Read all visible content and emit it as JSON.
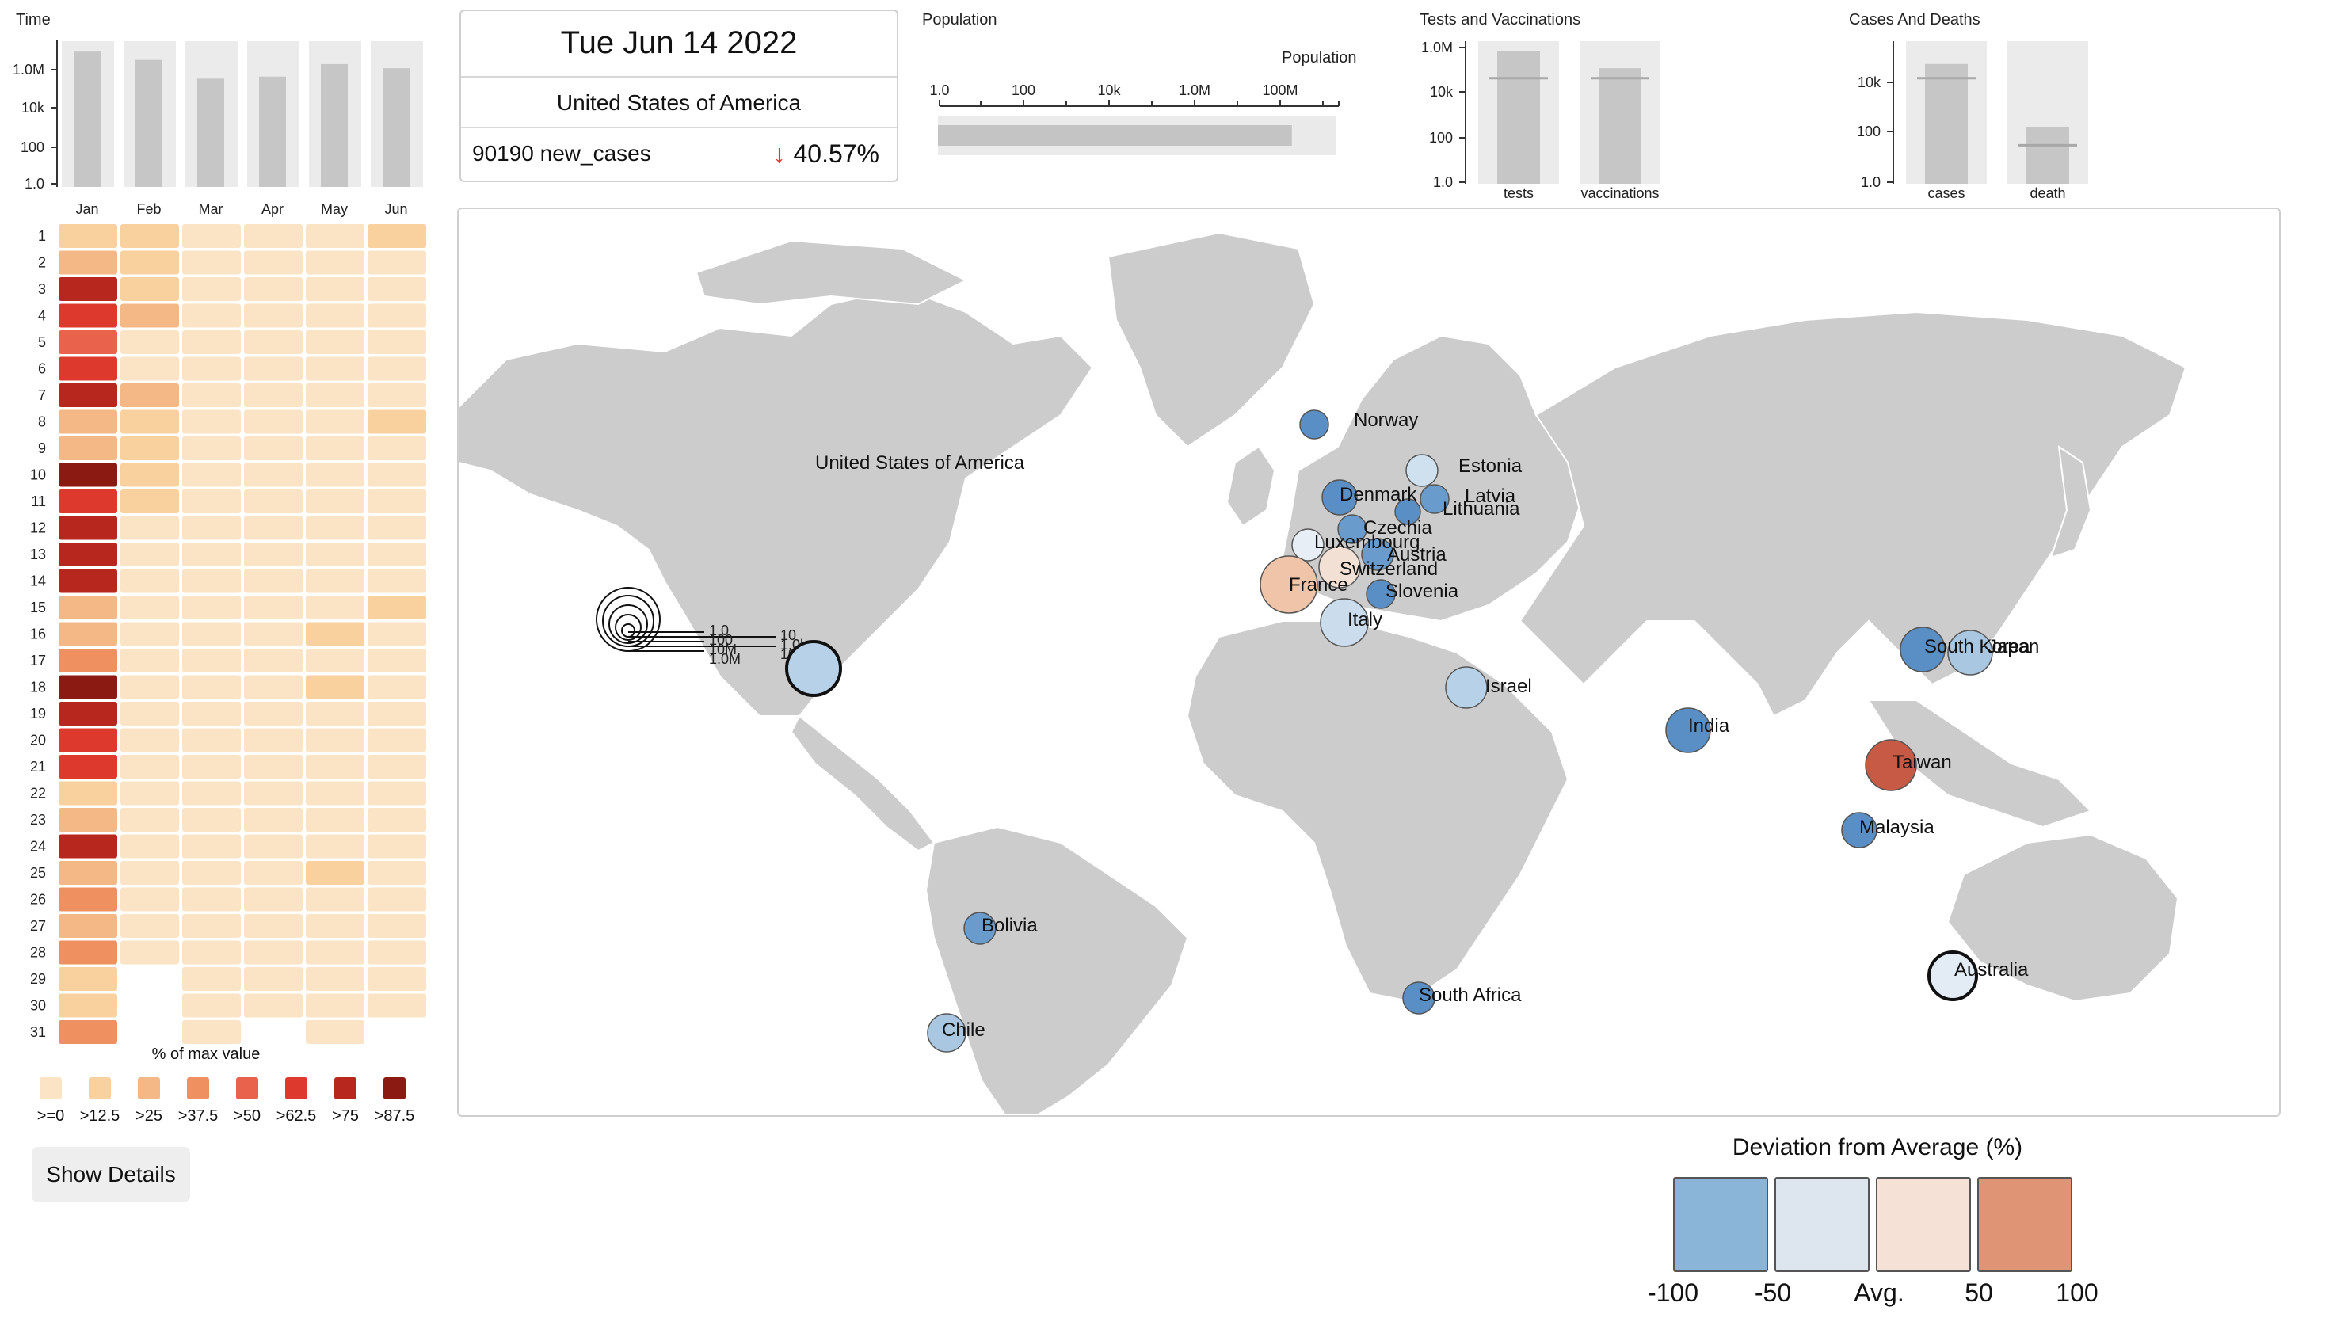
{
  "time_panel": {
    "title": "Time",
    "y_ticks": [
      "1.0M",
      "10k",
      "100",
      "1.0"
    ],
    "months": [
      "Jan",
      "Feb",
      "Mar",
      "Apr",
      "May",
      "Jun"
    ],
    "bar_log_values": [
      6.5,
      6.1,
      5.2,
      5.3,
      5.9,
      5.7
    ]
  },
  "heatmap": {
    "days": [
      "1",
      "2",
      "3",
      "4",
      "5",
      "6",
      "7",
      "8",
      "9",
      "10",
      "11",
      "12",
      "13",
      "14",
      "15",
      "16",
      "17",
      "18",
      "19",
      "20",
      "21",
      "22",
      "23",
      "24",
      "25",
      "26",
      "27",
      "28",
      "29",
      "30",
      "31"
    ],
    "levels": [
      [
        1,
        2,
        6,
        5,
        4,
        5,
        6,
        2,
        2,
        7,
        5,
        6,
        6,
        6,
        2,
        2,
        3,
        7,
        6,
        5,
        5,
        1,
        2,
        6,
        2,
        3,
        2,
        3,
        1,
        1,
        3
      ],
      [
        1,
        1,
        1,
        2,
        0,
        0,
        2,
        1,
        1,
        1,
        1,
        0,
        0,
        0,
        0,
        0,
        0,
        0,
        0,
        0,
        0,
        0,
        0,
        0,
        0,
        0,
        0,
        0,
        -1,
        -1,
        -1
      ],
      [
        0,
        0,
        0,
        0,
        0,
        0,
        0,
        0,
        0,
        0,
        0,
        0,
        0,
        0,
        0,
        0,
        0,
        0,
        0,
        0,
        0,
        0,
        0,
        0,
        0,
        0,
        0,
        0,
        0,
        0,
        0
      ],
      [
        0,
        0,
        0,
        0,
        0,
        0,
        0,
        0,
        0,
        0,
        0,
        0,
        0,
        0,
        0,
        0,
        0,
        0,
        0,
        0,
        0,
        0,
        0,
        0,
        0,
        0,
        0,
        0,
        0,
        0,
        -1
      ],
      [
        0,
        0,
        0,
        0,
        0,
        0,
        0,
        0,
        0,
        0,
        0,
        0,
        0,
        0,
        0,
        1,
        0,
        1,
        0,
        0,
        0,
        0,
        0,
        0,
        1,
        0,
        0,
        0,
        0,
        0,
        0
      ],
      [
        1,
        0,
        0,
        0,
        0,
        0,
        0,
        1,
        0,
        0,
        0,
        0,
        0,
        0,
        1,
        0,
        0,
        0,
        0,
        0,
        0,
        0,
        0,
        0,
        0,
        0,
        0,
        0,
        0,
        0,
        -1
      ]
    ],
    "legend_title": "% of max value",
    "legend_labels": [
      ">=0",
      ">12.5",
      ">25",
      ">37.5",
      ">50",
      ">62.5",
      ">75",
      ">87.5"
    ],
    "legend_colors": [
      "#fbe3c6",
      "#f8d19f",
      "#f4b887",
      "#ee9060",
      "#e9634c",
      "#dd3a2d",
      "#b8271e",
      "#8a1a12"
    ]
  },
  "show_details_label": "Show Details",
  "date_card": {
    "date": "Tue Jun 14 2022",
    "country": "United States of America",
    "metric": "90190 new_cases",
    "change": "40.57%",
    "arrow": "↓"
  },
  "population": {
    "title": "Population",
    "axis_title": "Population",
    "ticks": [
      "1.0",
      "100",
      "10k",
      "1.0M",
      "100M"
    ],
    "value_fraction": 0.89
  },
  "tests_vaccinations": {
    "title": "Tests and Vaccinations",
    "y_ticks": [
      "1.0M",
      "10k",
      "100",
      "1.0"
    ],
    "bars": [
      {
        "label": "tests",
        "value_fraction": 0.93,
        "avg_fraction": 0.74
      },
      {
        "label": "vaccinations",
        "value_fraction": 0.81,
        "avg_fraction": 0.74
      }
    ]
  },
  "cases_deaths": {
    "title": "Cases And Deaths",
    "y_ticks": [
      "10k",
      "100",
      "1.0"
    ],
    "bars": [
      {
        "label": "cases",
        "value_fraction": 0.84,
        "avg_fraction": 0.74
      },
      {
        "label": "death",
        "value_fraction": 0.4,
        "avg_fraction": 0.27
      }
    ]
  },
  "map": {
    "countries": [
      {
        "name": "United States of America",
        "color": "#b7d2e8",
        "selected": true
      },
      {
        "name": "Norway",
        "color": "#5a8fc6"
      },
      {
        "name": "Estonia",
        "color": "#cfe0ee"
      },
      {
        "name": "Denmark",
        "color": "#5a8fc6"
      },
      {
        "name": "Latvia",
        "color": "#6a9bcd"
      },
      {
        "name": "Lithuania",
        "color": "#5a8fc6"
      },
      {
        "name": "Czechia",
        "color": "#6a9bcd"
      },
      {
        "name": "Luxembourg",
        "color": "#e8eef5"
      },
      {
        "name": "Austria",
        "color": "#6a9bcd"
      },
      {
        "name": "Switzerland",
        "color": "#f2e0d4"
      },
      {
        "name": "France",
        "color": "#f0c4a8"
      },
      {
        "name": "Slovenia",
        "color": "#5a8fc6"
      },
      {
        "name": "Italy",
        "color": "#cbdcec"
      },
      {
        "name": "Israel",
        "color": "#b7d2e8"
      },
      {
        "name": "South Korea",
        "color": "#5a8fc6"
      },
      {
        "name": "Japan",
        "color": "#a9c7e1"
      },
      {
        "name": "India",
        "color": "#5a8fc6"
      },
      {
        "name": "Taiwan",
        "color": "#c65a45"
      },
      {
        "name": "Malaysia",
        "color": "#5a8fc6"
      },
      {
        "name": "Bolivia",
        "color": "#6a9bcd"
      },
      {
        "name": "Chile",
        "color": "#a9c7e1"
      },
      {
        "name": "South Africa",
        "color": "#5a8fc6"
      },
      {
        "name": "Australia",
        "color": "#e3ecf5",
        "selected": true
      }
    ],
    "size_legend": [
      "1.0",
      "100",
      "10M",
      "1.0M",
      "10",
      "1.0k",
      "100k"
    ]
  },
  "deviation_legend": {
    "title": "Deviation from Average (%)",
    "colors": [
      "#8ab4d8",
      "#dde6ef",
      "#f5e1d5",
      "#df9476"
    ],
    "labels": [
      "-100",
      "-50",
      "Avg.",
      "50",
      "100"
    ]
  }
}
